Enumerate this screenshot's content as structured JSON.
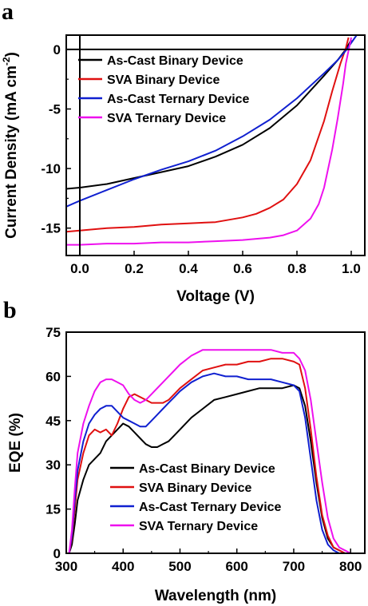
{
  "chart_data": [
    {
      "panel": "a",
      "type": "line",
      "xlabel": "Voltage (V)",
      "ylabel": "Current Density (mA cm",
      "ylabel_sup": "-2",
      "ylabel_end": ")",
      "xlim": [
        -0.05,
        1.05
      ],
      "ylim": [
        -17.3,
        1.2
      ],
      "xticks": [
        0.0,
        0.2,
        0.4,
        0.6,
        0.8,
        1.0
      ],
      "xtick_labels": [
        "0.0",
        "0.2",
        "0.4",
        "0.6",
        "0.8",
        "1.0"
      ],
      "yticks": [
        0,
        -5,
        -10,
        -15
      ],
      "ytick_labels": [
        "0",
        "-5",
        "-10",
        "-15"
      ],
      "grid": false,
      "legend_position": "top-left",
      "reference_lines": {
        "x_zero": true,
        "y_zero": true
      },
      "series": [
        {
          "name": "As-Cast Binary Device",
          "color": "#000000",
          "x": [
            -0.05,
            0.0,
            0.1,
            0.2,
            0.3,
            0.4,
            0.5,
            0.6,
            0.7,
            0.8,
            0.9,
            0.95,
            0.98,
            1.0
          ],
          "y": [
            -11.7,
            -11.6,
            -11.3,
            -10.8,
            -10.3,
            -9.8,
            -9.0,
            -8.0,
            -6.6,
            -4.7,
            -2.2,
            -0.9,
            0.0,
            0.8
          ]
        },
        {
          "name": "SVA Binary Device",
          "color": "#e01010",
          "x": [
            -0.05,
            0.0,
            0.1,
            0.2,
            0.3,
            0.4,
            0.5,
            0.6,
            0.65,
            0.7,
            0.75,
            0.8,
            0.85,
            0.9,
            0.93,
            0.96,
            0.98,
            0.99
          ],
          "y": [
            -15.3,
            -15.2,
            -15.0,
            -14.9,
            -14.7,
            -14.6,
            -14.5,
            -14.1,
            -13.8,
            -13.3,
            -12.6,
            -11.3,
            -9.3,
            -6.0,
            -3.5,
            -1.2,
            0.1,
            1.0
          ]
        },
        {
          "name": "As-Cast Ternary Device",
          "color": "#1020d0",
          "x": [
            -0.05,
            0.0,
            0.1,
            0.2,
            0.3,
            0.4,
            0.5,
            0.6,
            0.7,
            0.8,
            0.9,
            0.95,
            0.98,
            1.02
          ],
          "y": [
            -13.2,
            -12.7,
            -11.8,
            -10.9,
            -10.1,
            -9.4,
            -8.5,
            -7.3,
            -5.9,
            -4.1,
            -2.0,
            -0.9,
            -0.1,
            1.2
          ]
        },
        {
          "name": "SVA Ternary Device",
          "color": "#ee10ee",
          "x": [
            -0.05,
            0.0,
            0.1,
            0.2,
            0.3,
            0.4,
            0.5,
            0.6,
            0.7,
            0.75,
            0.8,
            0.85,
            0.88,
            0.9,
            0.93,
            0.95,
            0.97,
            0.98,
            1.0
          ],
          "y": [
            -16.4,
            -16.4,
            -16.3,
            -16.3,
            -16.2,
            -16.2,
            -16.1,
            -16.0,
            -15.8,
            -15.6,
            -15.2,
            -14.2,
            -13.0,
            -11.6,
            -8.4,
            -5.8,
            -2.9,
            -1.2,
            1.0
          ]
        }
      ]
    },
    {
      "panel": "b",
      "type": "line",
      "xlabel": "Wavelength (nm)",
      "ylabel": "EQE (%)",
      "xlim": [
        300,
        825
      ],
      "ylim": [
        0,
        75
      ],
      "xticks": [
        300,
        400,
        500,
        600,
        700,
        800
      ],
      "xtick_labels": [
        "300",
        "400",
        "500",
        "600",
        "700",
        "800"
      ],
      "yticks": [
        0,
        15,
        30,
        45,
        60,
        75
      ],
      "ytick_labels": [
        "0",
        "15",
        "30",
        "45",
        "60",
        "75"
      ],
      "grid": false,
      "legend_position": "bottom-center",
      "series": [
        {
          "name": "As-Cast Binary Device",
          "color": "#000000",
          "x": [
            305,
            310,
            315,
            320,
            330,
            340,
            350,
            360,
            370,
            380,
            390,
            400,
            410,
            420,
            430,
            440,
            450,
            460,
            470,
            480,
            490,
            500,
            520,
            540,
            560,
            580,
            600,
            620,
            640,
            660,
            680,
            700,
            710,
            720,
            730,
            740,
            750,
            760,
            770,
            780,
            790,
            800
          ],
          "y": [
            0,
            3,
            10,
            18,
            25,
            30,
            32,
            34,
            38,
            40,
            42,
            44,
            43,
            41,
            39,
            37,
            36,
            36,
            37,
            38,
            40,
            42,
            46,
            49,
            52,
            53,
            54,
            55,
            56,
            56,
            56,
            57,
            56,
            50,
            38,
            24,
            12,
            5,
            2,
            1,
            0,
            0
          ]
        },
        {
          "name": "SVA Binary Device",
          "color": "#e01010",
          "x": [
            305,
            310,
            315,
            320,
            330,
            340,
            350,
            360,
            370,
            380,
            390,
            400,
            410,
            420,
            430,
            440,
            450,
            460,
            470,
            480,
            490,
            500,
            520,
            540,
            560,
            580,
            600,
            620,
            640,
            660,
            680,
            700,
            710,
            720,
            730,
            740,
            750,
            760,
            770,
            780,
            790,
            800
          ],
          "y": [
            0,
            5,
            15,
            25,
            34,
            40,
            42,
            41,
            42,
            40,
            44,
            49,
            53,
            54,
            53,
            52,
            51,
            51,
            51,
            52,
            54,
            56,
            59,
            62,
            63,
            64,
            64,
            65,
            65,
            66,
            66,
            65,
            64,
            56,
            42,
            26,
            13,
            6,
            2,
            1,
            0,
            0
          ]
        },
        {
          "name": "As-Cast Ternary Device",
          "color": "#1020d0",
          "x": [
            305,
            310,
            315,
            320,
            330,
            340,
            350,
            360,
            370,
            380,
            390,
            400,
            410,
            420,
            430,
            440,
            450,
            460,
            470,
            480,
            490,
            500,
            520,
            540,
            560,
            580,
            600,
            620,
            640,
            660,
            680,
            700,
            710,
            720,
            730,
            740,
            750,
            760,
            770,
            780,
            790
          ],
          "y": [
            0,
            6,
            18,
            28,
            38,
            44,
            47,
            49,
            50,
            50,
            48,
            46,
            45,
            44,
            43,
            43,
            45,
            47,
            49,
            51,
            53,
            55,
            58,
            60,
            61,
            60,
            60,
            59,
            59,
            59,
            58,
            57,
            55,
            46,
            32,
            18,
            8,
            3,
            1,
            0,
            0
          ]
        },
        {
          "name": "SVA Ternary Device",
          "color": "#ee10ee",
          "x": [
            305,
            310,
            315,
            320,
            330,
            340,
            350,
            360,
            370,
            380,
            390,
            400,
            410,
            420,
            430,
            440,
            450,
            460,
            470,
            480,
            490,
            500,
            520,
            540,
            560,
            580,
            600,
            620,
            640,
            660,
            680,
            700,
            710,
            720,
            730,
            740,
            750,
            760,
            770,
            780,
            790,
            800,
            810
          ],
          "y": [
            0,
            8,
            22,
            34,
            44,
            50,
            55,
            58,
            59,
            59,
            58,
            57,
            54,
            52,
            51,
            52,
            54,
            56,
            58,
            60,
            62,
            64,
            67,
            69,
            69,
            69,
            69,
            69,
            69,
            69,
            68,
            68,
            66,
            62,
            52,
            38,
            24,
            12,
            5,
            2,
            1,
            0,
            0
          ]
        }
      ]
    }
  ]
}
